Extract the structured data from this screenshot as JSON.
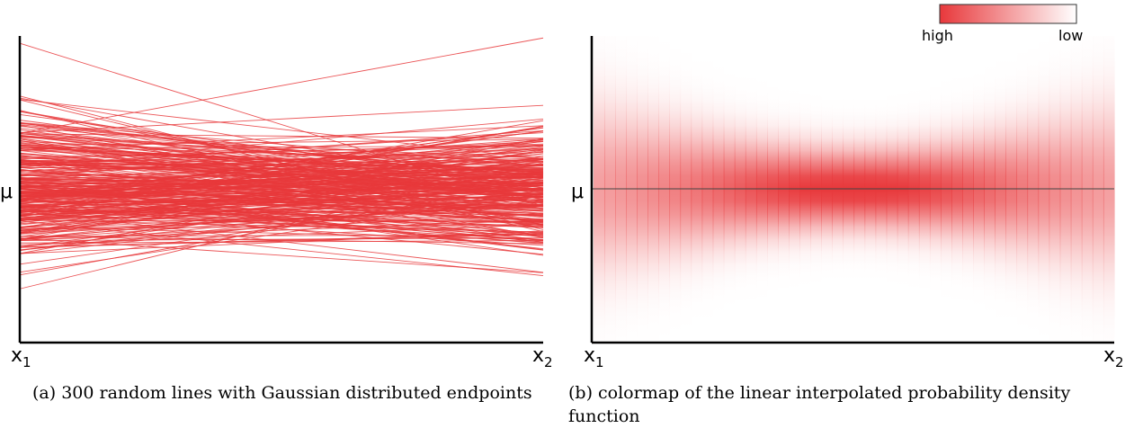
{
  "chart_data": [
    {
      "type": "line",
      "panel": "a",
      "caption": "(a) 300 random lines with Gaussian distributed endpoints",
      "n_lines": 300,
      "endpoint_distribution": "gaussian",
      "mean_label": "μ",
      "x_ticks": [
        {
          "main": "x",
          "sub": "1"
        },
        {
          "main": "x",
          "sub": "2"
        }
      ],
      "line_color": "#e8383b",
      "grid": false
    },
    {
      "type": "heatmap",
      "panel": "b",
      "caption": "(b) colormap of the linear interpolated probability density function",
      "mean_label": "μ",
      "x_ticks": [
        {
          "main": "x",
          "sub": "1"
        },
        {
          "main": "x",
          "sub": "2"
        }
      ],
      "colormap": {
        "high_color": "#e8383b",
        "low_color": "#ffffff"
      },
      "legend": {
        "high_label": "high",
        "low_label": "low",
        "placement": "top-right"
      },
      "mean_line_color": "#444444",
      "grid": false
    }
  ]
}
